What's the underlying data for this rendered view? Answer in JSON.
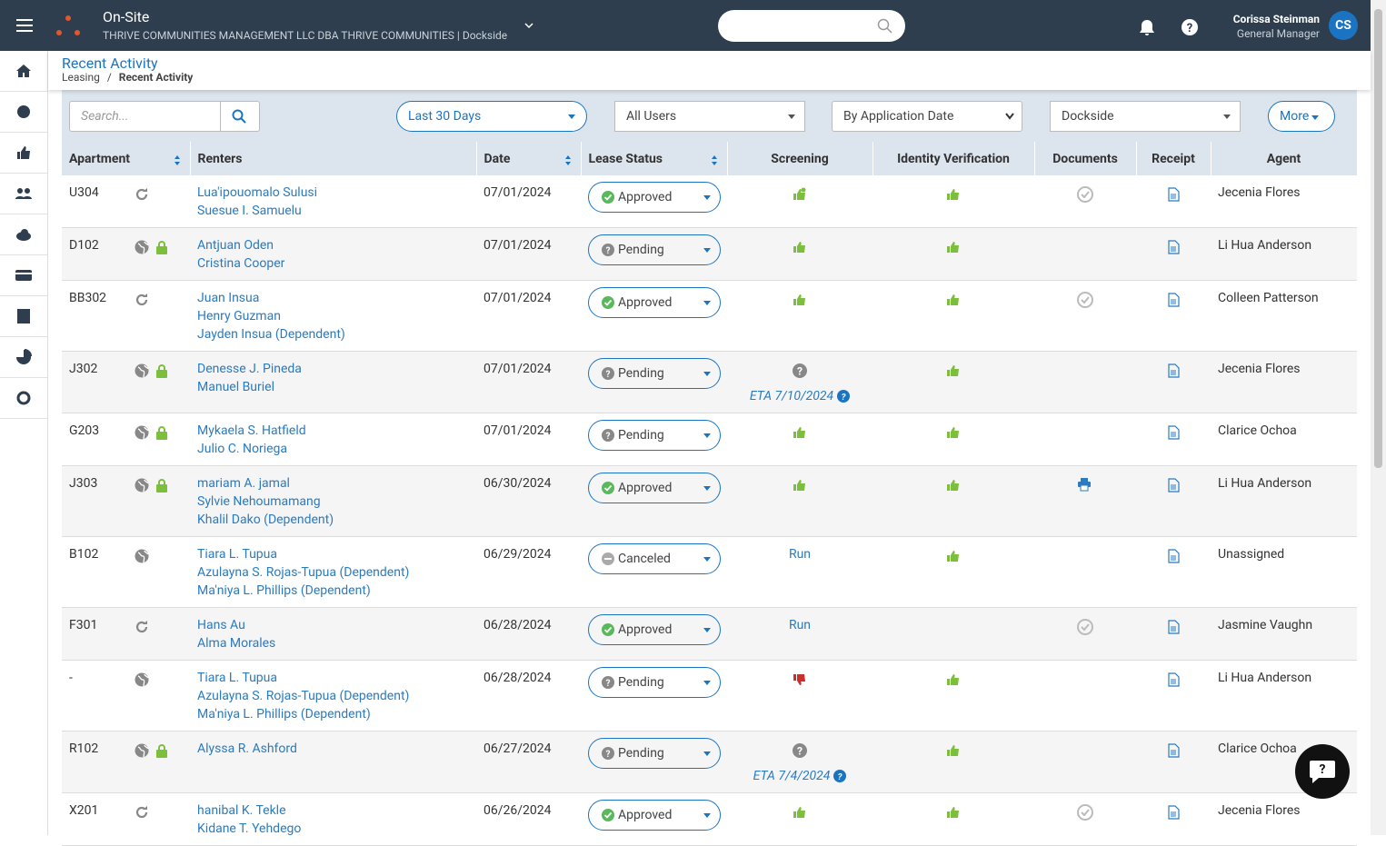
{
  "header": {
    "app_name": "On-Site",
    "company": "THRIVE COMMUNITIES MANAGEMENT LLC DBA THRIVE COMMUNITIES | Dockside",
    "user_name": "Corissa Steinman",
    "user_role": "General Manager",
    "initials": "CS"
  },
  "breadcrumb": {
    "title": "Recent Activity",
    "parent": "Leasing",
    "separator": "/",
    "current": "Recent Activity"
  },
  "filters": {
    "search_placeholder": "Search...",
    "date_range": "Last 30 Days",
    "users": "All Users",
    "sort": "By Application Date",
    "property": "Dockside",
    "more": "More"
  },
  "table": {
    "columns": [
      "Apartment",
      "Renters",
      "Date",
      "Lease Status",
      "Screening",
      "Identity Verification",
      "Documents",
      "Receipt",
      "Agent"
    ],
    "rows": [
      {
        "apartment": "U304",
        "renters": [
          "Lua'ipouomalo Sulusi",
          "Suesue I. Samuelu"
        ],
        "date": "07/01/2024",
        "status": "Approved",
        "agent": "Jecenia Flores"
      },
      {
        "apartment": "D102",
        "renters": [
          "Antjuan Oden",
          "Cristina Cooper"
        ],
        "date": "07/01/2024",
        "status": "Pending",
        "agent": "Li Hua Anderson"
      },
      {
        "apartment": "BB302",
        "renters": [
          "Juan Insua",
          "Henry Guzman",
          "Jayden Insua (Dependent)"
        ],
        "date": "07/01/2024",
        "status": "Approved",
        "agent": "Colleen Patterson"
      },
      {
        "apartment": "J302",
        "renters": [
          "Denesse J. Pineda",
          "Manuel Buriel"
        ],
        "date": "07/01/2024",
        "status": "Pending",
        "screening_eta": "ETA 7/10/2024",
        "agent": "Jecenia Flores"
      },
      {
        "apartment": "G203",
        "renters": [
          "Mykaela S. Hatfield",
          "Julio C. Noriega"
        ],
        "date": "07/01/2024",
        "status": "Pending",
        "agent": "Clarice Ochoa"
      },
      {
        "apartment": "J303",
        "renters": [
          "mariam A. jamal",
          "Sylvie Nehoumamang",
          "Khalil Dako (Dependent)"
        ],
        "date": "06/30/2024",
        "status": "Approved",
        "agent": "Li Hua Anderson"
      },
      {
        "apartment": "B102",
        "renters": [
          "Tiara L. Tupua",
          "Azulayna S. Rojas-Tupua (Dependent)",
          "Ma'niya L. Phillips (Dependent)"
        ],
        "date": "06/29/2024",
        "status": "Canceled",
        "screening_action": "Run",
        "agent": "Unassigned"
      },
      {
        "apartment": "F301",
        "renters": [
          "Hans Au",
          "Alma Morales"
        ],
        "date": "06/28/2024",
        "status": "Approved",
        "screening_action": "Run",
        "agent": "Jasmine Vaughn"
      },
      {
        "apartment": "-",
        "renters": [
          "Tiara L. Tupua",
          "Azulayna S. Rojas-Tupua (Dependent)",
          "Ma'niya L. Phillips (Dependent)"
        ],
        "date": "06/28/2024",
        "status": "Pending",
        "agent": "Li Hua Anderson"
      },
      {
        "apartment": "R102",
        "renters": [
          "Alyssa R. Ashford"
        ],
        "date": "06/27/2024",
        "status": "Pending",
        "screening_eta": "ETA 7/4/2024",
        "agent": "Clarice Ochoa"
      },
      {
        "apartment": "X201",
        "renters": [
          "hanibal K. Tekle",
          "Kidane T. Yehdego"
        ],
        "date": "06/26/2024",
        "status": "Approved",
        "agent": "Jecenia Flores"
      }
    ]
  }
}
